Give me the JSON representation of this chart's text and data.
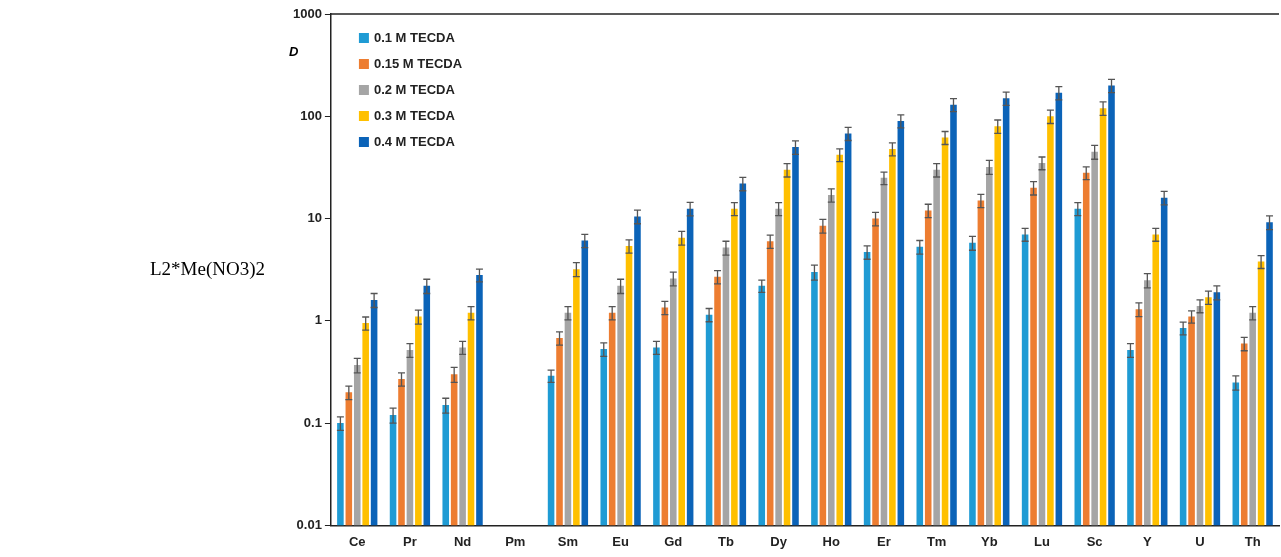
{
  "chart_data": {
    "type": "bar",
    "ylabel": "D",
    "annotations": [
      "L2*Me(NO3)2"
    ],
    "categories": [
      "Ce",
      "Pr",
      "Nd",
      "Pm",
      "Sm",
      "Eu",
      "Gd",
      "Tb",
      "Dy",
      "Ho",
      "Er",
      "Tm",
      "Yb",
      "Lu",
      "Sc",
      "Y",
      "U",
      "Th"
    ],
    "series": [
      {
        "name": "0.1 M TECDA",
        "color": "#1f9bd4",
        "values": [
          0.1,
          0.12,
          0.15,
          null,
          0.29,
          0.53,
          0.55,
          1.15,
          2.2,
          3,
          4.7,
          5.3,
          5.8,
          7,
          12.5,
          0.52,
          0.85,
          0.25
        ],
        "errors": [
          0.015,
          0.02,
          0.025,
          null,
          0.04,
          0.08,
          0.08,
          0.17,
          0.3,
          0.5,
          0.7,
          0.8,
          0.9,
          1,
          1.8,
          0.08,
          0.12,
          0.04
        ]
      },
      {
        "name": "0.15 M TECDA",
        "color": "#ed7d31",
        "values": [
          0.2,
          0.27,
          0.3,
          null,
          0.68,
          1.2,
          1.35,
          2.7,
          6,
          8.5,
          10,
          12,
          15,
          20,
          28,
          1.3,
          1.1,
          0.6
        ],
        "errors": [
          0.03,
          0.04,
          0.05,
          null,
          0.1,
          0.18,
          0.2,
          0.4,
          0.9,
          1.3,
          1.5,
          1.8,
          2.2,
          3,
          4,
          0.2,
          0.15,
          0.09
        ]
      },
      {
        "name": "0.2 M TECDA",
        "color": "#a5a5a5",
        "values": [
          0.37,
          0.52,
          0.55,
          null,
          1.2,
          2.2,
          2.6,
          5.2,
          12.5,
          17,
          25,
          30,
          32,
          35,
          45,
          2.5,
          1.4,
          1.2
        ],
        "errors": [
          0.06,
          0.08,
          0.08,
          null,
          0.18,
          0.35,
          0.4,
          0.8,
          1.8,
          2.5,
          3.5,
          4.5,
          5,
          5,
          7,
          0.4,
          0.2,
          0.18
        ]
      },
      {
        "name": "0.3 M TECDA",
        "color": "#ffc000",
        "values": [
          0.95,
          1.1,
          1.2,
          null,
          3.2,
          5.4,
          6.5,
          12.5,
          30,
          42,
          48,
          62,
          80,
          100,
          120,
          7,
          1.7,
          3.8
        ],
        "errors": [
          0.14,
          0.17,
          0.18,
          null,
          0.5,
          0.8,
          1,
          1.8,
          4.5,
          6,
          7,
          9,
          12,
          15,
          18,
          1,
          0.25,
          0.55
        ]
      },
      {
        "name": "0.4 M TECDA",
        "color": "#0b63b8",
        "values": [
          1.6,
          2.2,
          2.8,
          null,
          6.1,
          10.5,
          12.5,
          22,
          50,
          68,
          90,
          130,
          150,
          170,
          200,
          16,
          1.9,
          9.2
        ],
        "errors": [
          0.25,
          0.35,
          0.4,
          null,
          0.9,
          1.6,
          1.9,
          3.3,
          7.5,
          10,
          13,
          19,
          22,
          25,
          30,
          2.4,
          0.3,
          1.4
        ]
      }
    ],
    "ylim": [
      0.01,
      1000
    ],
    "yticks": [
      0.01,
      0.1,
      1,
      10,
      100,
      1000
    ],
    "log": "y",
    "legend": "top left",
    "grid": false
  }
}
